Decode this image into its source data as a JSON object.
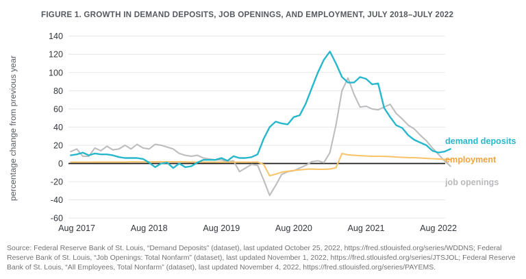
{
  "title": "FIGURE 1. GROWTH IN DEMAND DEPOSITS, JOB OPENINGS, AND EMPLOYMENT, JULY 2018–JULY 2022",
  "y_axis_label": "percentage change from previous year",
  "legend": {
    "demand_deposits": "demand deposits",
    "employment": "employment",
    "job_openings": "job openings"
  },
  "colors": {
    "grid": "#e9e9ec",
    "zero_line": "#1c1c1c",
    "axis_text": "#33363d",
    "title_text": "#55585f",
    "source_text": "#717275",
    "demand_deposits": "#26b7cb",
    "employment_line": "#f9c46b",
    "employment_label": "#f2a33c",
    "job_openings": "#bdbdc0"
  },
  "source_text": "Source: Federal Reserve Bank of St. Louis, “Demand Deposits” (dataset), last updated October 25, 2022, https://fred.stlouisfed.org/series/WDDNS; Federal Reserve Bank of St. Louis, “Job Openings: Total Nonfarm” (dataset), last updated November 1, 2022, https://fred.stlouisfed.org/series/JTSJOL; Federal Reserve Bank of St. Louis, “All Employees, Total Nonfarm” (dataset), last updated November 4, 2022, https://fred.stlouisfed.org/series/PAYEMS.",
  "chart_data": {
    "type": "line",
    "title": "FIGURE 1. GROWTH IN DEMAND DEPOSITS, JOB OPENINGS, AND EMPLOYMENT, JULY 2018–JULY 2022",
    "ylabel": "percentage change from previous year",
    "ylim": [
      -60,
      140
    ],
    "grid": true,
    "legend_position": "right",
    "y_ticks": [
      140,
      120,
      100,
      80,
      60,
      40,
      20,
      0,
      -20,
      -40,
      -60
    ],
    "x_tick_labels": [
      "Aug 2017",
      "Aug 2018",
      "Aug 2019",
      "Aug 2020",
      "Aug 2021",
      "Aug 2022"
    ],
    "x_months": [
      "Jul 2017",
      "Aug 2017",
      "Sep 2017",
      "Oct 2017",
      "Nov 2017",
      "Dec 2017",
      "Jan 2018",
      "Feb 2018",
      "Mar 2018",
      "Apr 2018",
      "May 2018",
      "Jun 2018",
      "Jul 2018",
      "Aug 2018",
      "Sep 2018",
      "Oct 2018",
      "Nov 2018",
      "Dec 2018",
      "Jan 2019",
      "Feb 2019",
      "Mar 2019",
      "Apr 2019",
      "May 2019",
      "Jun 2019",
      "Jul 2019",
      "Aug 2019",
      "Sep 2019",
      "Oct 2019",
      "Nov 2019",
      "Dec 2019",
      "Jan 2020",
      "Feb 2020",
      "Mar 2020",
      "Apr 2020",
      "May 2020",
      "Jun 2020",
      "Jul 2020",
      "Aug 2020",
      "Sep 2020",
      "Oct 2020",
      "Nov 2020",
      "Dec 2020",
      "Jan 2021",
      "Feb 2021",
      "Mar 2021",
      "Apr 2021",
      "May 2021",
      "Jun 2021",
      "Jul 2021",
      "Aug 2021",
      "Sep 2021",
      "Oct 2021",
      "Nov 2021",
      "Dec 2021",
      "Jan 2022",
      "Feb 2022",
      "Mar 2022",
      "Apr 2022",
      "May 2022",
      "Jun 2022",
      "Jul 2022",
      "Aug 2022",
      "Sep 2022",
      "Oct 2022"
    ],
    "series": [
      {
        "name": "demand deposits",
        "color": "#26b7cb",
        "label_color": "#26b7cb",
        "values": [
          9,
          10,
          12,
          9,
          11,
          10,
          10,
          9,
          7,
          6,
          6,
          6,
          5,
          1,
          -4,
          0,
          1,
          -5,
          0,
          -4,
          -3,
          1,
          4,
          4,
          4,
          6,
          3,
          8,
          6,
          6,
          7,
          10,
          27,
          40,
          46,
          44,
          43,
          51,
          53,
          66,
          83,
          100,
          114,
          123,
          110,
          95,
          89,
          89,
          95,
          93,
          87,
          88,
          61,
          51,
          42,
          39,
          31,
          26,
          23,
          20,
          14,
          12,
          13,
          16
        ]
      },
      {
        "name": "employment",
        "color": "#f9c46b",
        "label_color": "#f2a33c",
        "values": [
          1.5,
          1.5,
          1.5,
          1.5,
          1.6,
          1.6,
          1.6,
          1.6,
          1.6,
          1.6,
          1.7,
          1.7,
          1.7,
          1.7,
          1.8,
          1.8,
          1.8,
          1.8,
          1.8,
          1.7,
          1.6,
          1.6,
          1.5,
          1.5,
          1.5,
          1.4,
          1.4,
          1.4,
          1.5,
          1.4,
          1.5,
          1.6,
          -1.0,
          -13.5,
          -11.7,
          -9.6,
          -8.6,
          -7.7,
          -7.0,
          -6.3,
          -6.1,
          -6.4,
          -6.3,
          -6.1,
          -4.6,
          10.9,
          9.5,
          9.0,
          8.6,
          8.2,
          8.0,
          8.0,
          7.8,
          7.6,
          7.1,
          6.8,
          6.5,
          6.3,
          6.0,
          5.6,
          5.3,
          5.0,
          4.6,
          4.2
        ]
      },
      {
        "name": "job openings",
        "color": "#bdbdc0",
        "label_color": "#b9b9bc",
        "values": [
          13,
          16,
          8,
          8,
          17,
          14,
          19,
          15,
          16,
          20,
          16,
          21,
          17,
          16,
          21,
          20,
          18,
          16,
          11,
          9,
          8,
          9,
          6,
          5,
          4,
          4,
          2,
          3,
          -9,
          -5,
          -1,
          -2,
          -18,
          -35,
          -24,
          -12,
          -9,
          -8,
          -5,
          -2,
          2,
          3,
          1,
          12,
          42,
          80,
          94,
          76,
          62,
          63,
          60,
          59,
          62,
          65,
          55,
          49,
          42,
          38,
          31,
          25,
          17,
          10,
          3,
          -3
        ]
      }
    ]
  }
}
